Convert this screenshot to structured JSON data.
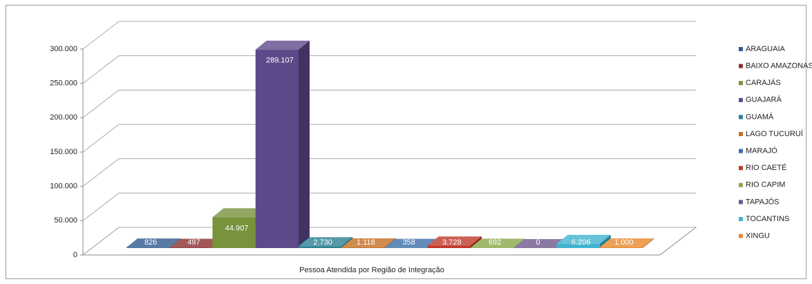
{
  "chart_data": {
    "type": "bar3d",
    "categories": [
      "Pessoa Atendida por Região de Integração"
    ],
    "ylim": [
      0,
      300000
    ],
    "yticks": [
      0,
      {
        "value": 50000,
        "label": "50.000"
      },
      {
        "value": 100000,
        "label": "100.000"
      },
      {
        "value": 150000,
        "label": "150.000"
      },
      {
        "value": 200000,
        "label": "200.000"
      },
      {
        "value": 250000,
        "label": "250.000"
      },
      {
        "value": 300000,
        "label": "300.000"
      }
    ],
    "grid": true,
    "legend": "right",
    "series": [
      {
        "name": "ARAGUAIA",
        "color": "#2f5b8c",
        "values": [
          826
        ],
        "value_labels": [
          "826"
        ]
      },
      {
        "name": "BAIXO AMAZONAS",
        "color": "#8c2f2f",
        "values": [
          497
        ],
        "value_labels": [
          "497"
        ]
      },
      {
        "name": "CARAJÁS",
        "color": "#77933c",
        "values": [
          44907
        ],
        "value_labels": [
          "44.907"
        ]
      },
      {
        "name": "GUAJARÁ",
        "color": "#5e4a8a",
        "values": [
          289107
        ],
        "value_labels": [
          "289.107"
        ]
      },
      {
        "name": "GUAMÁ",
        "color": "#2b8094",
        "values": [
          2730
        ],
        "value_labels": [
          "2.730"
        ]
      },
      {
        "name": "LAGO TUCURUÍ",
        "color": "#c56f22",
        "values": [
          1118
        ],
        "value_labels": [
          "1.118"
        ]
      },
      {
        "name": "MARAJÓ",
        "color": "#3b6ea8",
        "values": [
          358
        ],
        "value_labels": [
          "358"
        ]
      },
      {
        "name": "RIO CAETÉ",
        "color": "#c0392b",
        "values": [
          3728
        ],
        "value_labels": [
          "3.728"
        ]
      },
      {
        "name": "RIO CAPIM",
        "color": "#8aa84a",
        "values": [
          692
        ],
        "value_labels": [
          "692"
        ]
      },
      {
        "name": "TAPAJÓS",
        "color": "#6e578c",
        "values": [
          0
        ],
        "value_labels": [
          "0"
        ]
      },
      {
        "name": "TOCANTINS",
        "color": "#3fb3d0",
        "values": [
          6206
        ],
        "value_labels": [
          "6.206"
        ]
      },
      {
        "name": "XINGU",
        "color": "#e88a2e",
        "values": [
          1000
        ],
        "value_labels": [
          "1.000"
        ]
      }
    ]
  }
}
